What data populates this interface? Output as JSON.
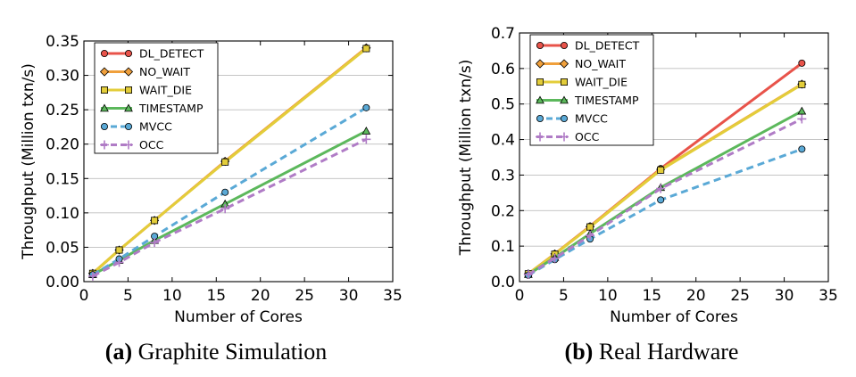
{
  "chart_data": [
    {
      "type": "line",
      "caption": {
        "letter": "(a)",
        "text": "Graphite Simulation"
      },
      "xlabel": "Number of Cores",
      "ylabel": "Throughput (Million txn/s)",
      "xlim": [
        0,
        35
      ],
      "ylim": [
        0,
        0.35
      ],
      "xticks": [
        0,
        5,
        10,
        15,
        20,
        25,
        30,
        35
      ],
      "xtick_labels": [
        "0",
        "5",
        "10",
        "15",
        "20",
        "25",
        "30",
        "35"
      ],
      "yticks": [
        0,
        0.05,
        0.1,
        0.15,
        0.2,
        0.25,
        0.3,
        0.35
      ],
      "ytick_labels": [
        "0.00",
        "0.05",
        "0.10",
        "0.15",
        "0.20",
        "0.25",
        "0.30",
        "0.35"
      ],
      "grid": "horizontal",
      "legend_position": "top-left",
      "x": [
        1,
        4,
        8,
        16,
        32
      ],
      "series": [
        {
          "name": "DL_DETECT",
          "values": [
            0.012,
            0.046,
            0.089,
            0.175,
            0.34
          ],
          "color": "#e8534a",
          "marker": "circle",
          "dashed": false
        },
        {
          "name": "NO_WAIT",
          "values": [
            0.012,
            0.046,
            0.089,
            0.175,
            0.34
          ],
          "color": "#f0a03c",
          "marker": "diamond",
          "dashed": false
        },
        {
          "name": "WAIT_DIE",
          "values": [
            0.012,
            0.046,
            0.089,
            0.174,
            0.339
          ],
          "color": "#e3cd3a",
          "marker": "square",
          "dashed": false
        },
        {
          "name": "TIMESTAMP",
          "values": [
            0.01,
            0.031,
            0.06,
            0.113,
            0.219
          ],
          "color": "#5cb85c",
          "marker": "triangle",
          "dashed": false
        },
        {
          "name": "MVCC",
          "values": [
            0.01,
            0.033,
            0.066,
            0.13,
            0.253
          ],
          "color": "#5aa9d6",
          "marker": "circle",
          "dashed": true
        },
        {
          "name": "OCC",
          "values": [
            0.008,
            0.028,
            0.057,
            0.106,
            0.207
          ],
          "color": "#b07cc6",
          "marker": "plus",
          "dashed": true
        }
      ]
    },
    {
      "type": "line",
      "caption": {
        "letter": "(b)",
        "text": "Real Hardware"
      },
      "xlabel": "Number of Cores",
      "ylabel": "Throughput (Million txn/s)",
      "xlim": [
        0,
        35
      ],
      "ylim": [
        0,
        0.7
      ],
      "xticks": [
        0,
        5,
        10,
        15,
        20,
        25,
        30,
        35
      ],
      "xtick_labels": [
        "0",
        "5",
        "10",
        "15",
        "20",
        "25",
        "30",
        "35"
      ],
      "yticks": [
        0,
        0.1,
        0.2,
        0.3,
        0.4,
        0.5,
        0.6,
        0.7
      ],
      "ytick_labels": [
        "0.0",
        "0.1",
        "0.2",
        "0.3",
        "0.4",
        "0.5",
        "0.6",
        "0.7"
      ],
      "grid": "horizontal",
      "legend_position": "top-left",
      "x": [
        1,
        4,
        8,
        16,
        32
      ],
      "series": [
        {
          "name": "DL_DETECT",
          "values": [
            0.022,
            0.078,
            0.156,
            0.318,
            0.615
          ],
          "color": "#e8534a",
          "marker": "circle",
          "dashed": false
        },
        {
          "name": "NO_WAIT",
          "values": [
            0.022,
            0.078,
            0.155,
            0.316,
            0.556
          ],
          "color": "#f0a03c",
          "marker": "diamond",
          "dashed": false
        },
        {
          "name": "WAIT_DIE",
          "values": [
            0.022,
            0.077,
            0.154,
            0.314,
            0.555
          ],
          "color": "#e3cd3a",
          "marker": "square",
          "dashed": false
        },
        {
          "name": "TIMESTAMP",
          "values": [
            0.02,
            0.068,
            0.135,
            0.265,
            0.48
          ],
          "color": "#5cb85c",
          "marker": "triangle",
          "dashed": false
        },
        {
          "name": "MVCC",
          "values": [
            0.018,
            0.062,
            0.12,
            0.23,
            0.373
          ],
          "color": "#5aa9d6",
          "marker": "circle",
          "dashed": true
        },
        {
          "name": "OCC",
          "values": [
            0.02,
            0.066,
            0.13,
            0.262,
            0.458
          ],
          "color": "#b07cc6",
          "marker": "plus",
          "dashed": true
        }
      ]
    }
  ]
}
